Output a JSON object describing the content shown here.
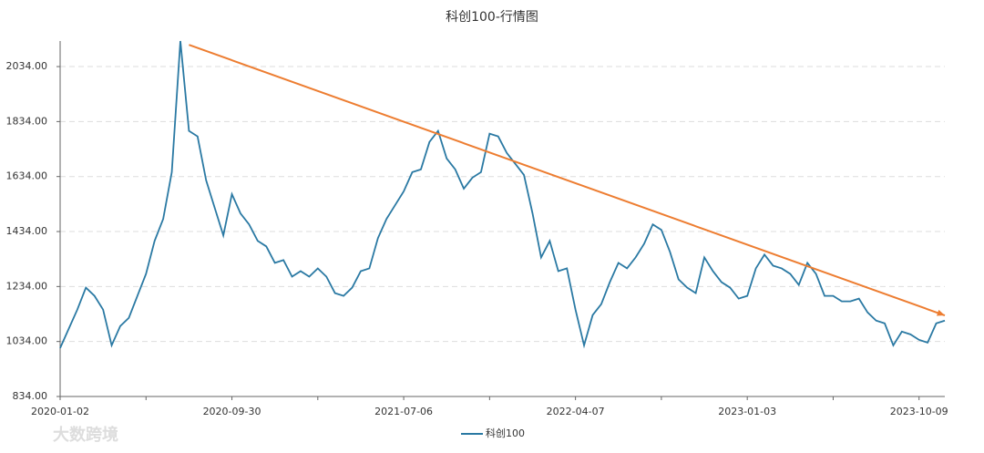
{
  "chart_data": {
    "type": "line",
    "title": "科创100-行情图",
    "watermark": "大数跨境",
    "categories": [
      "2020-01-02",
      null,
      null,
      null,
      null,
      null,
      null,
      null,
      null,
      null,
      null,
      null,
      null,
      null,
      null,
      null,
      null,
      null,
      null,
      null,
      "2020-09-30",
      null,
      null,
      null,
      null,
      null,
      null,
      null,
      null,
      null,
      null,
      null,
      null,
      null,
      null,
      null,
      null,
      null,
      null,
      null,
      "2021-07-06",
      null,
      null,
      null,
      null,
      null,
      null,
      null,
      null,
      null,
      null,
      null,
      null,
      null,
      null,
      null,
      null,
      null,
      null,
      null,
      "2022-04-07",
      null,
      null,
      null,
      null,
      null,
      null,
      null,
      null,
      null,
      null,
      null,
      null,
      null,
      null,
      null,
      null,
      null,
      null,
      null,
      "2023-01-03",
      null,
      null,
      null,
      null,
      null,
      null,
      null,
      null,
      null,
      null,
      null,
      null,
      null,
      null,
      null,
      null,
      null,
      null,
      null,
      "2023-10-09",
      null,
      null,
      null
    ],
    "series": [
      {
        "name": "科创100",
        "color": "#2a79a3",
        "values": [
          1010,
          1080,
          1150,
          1230,
          1200,
          1150,
          1020,
          1090,
          1120,
          1200,
          1280,
          1400,
          1480,
          1650,
          2127,
          1800,
          1780,
          1620,
          1520,
          1420,
          1570,
          1500,
          1460,
          1400,
          1380,
          1320,
          1330,
          1270,
          1290,
          1270,
          1300,
          1270,
          1210,
          1200,
          1230,
          1290,
          1300,
          1410,
          1480,
          1530,
          1580,
          1650,
          1660,
          1760,
          1800,
          1700,
          1660,
          1590,
          1630,
          1650,
          1790,
          1780,
          1720,
          1680,
          1640,
          1500,
          1340,
          1400,
          1290,
          1300,
          1150,
          1020,
          1130,
          1170,
          1250,
          1320,
          1300,
          1340,
          1390,
          1460,
          1440,
          1360,
          1260,
          1230,
          1210,
          1340,
          1290,
          1250,
          1230,
          1190,
          1200,
          1300,
          1350,
          1310,
          1300,
          1280,
          1240,
          1320,
          1280,
          1200,
          1200,
          1180,
          1180,
          1190,
          1140,
          1110,
          1100,
          1020,
          1070,
          1060,
          1040,
          1030,
          1100,
          1110
        ]
      }
    ],
    "trendline": {
      "start": 2113,
      "end": 1129,
      "color": "#ed7d31"
    },
    "ylim": [
      834,
      2127
    ],
    "yticks": [
      {
        "value": 834,
        "label": "834.00"
      },
      {
        "value": 1034,
        "label": "1034.00"
      },
      {
        "value": 1234,
        "label": "1234.00"
      },
      {
        "value": 1434,
        "label": "1434.00"
      },
      {
        "value": 1634,
        "label": "1634.00"
      },
      {
        "value": 1834,
        "label": "1834.00"
      },
      {
        "value": 2034,
        "label": "2034.00"
      }
    ],
    "grid": true,
    "legend": "bottom"
  }
}
